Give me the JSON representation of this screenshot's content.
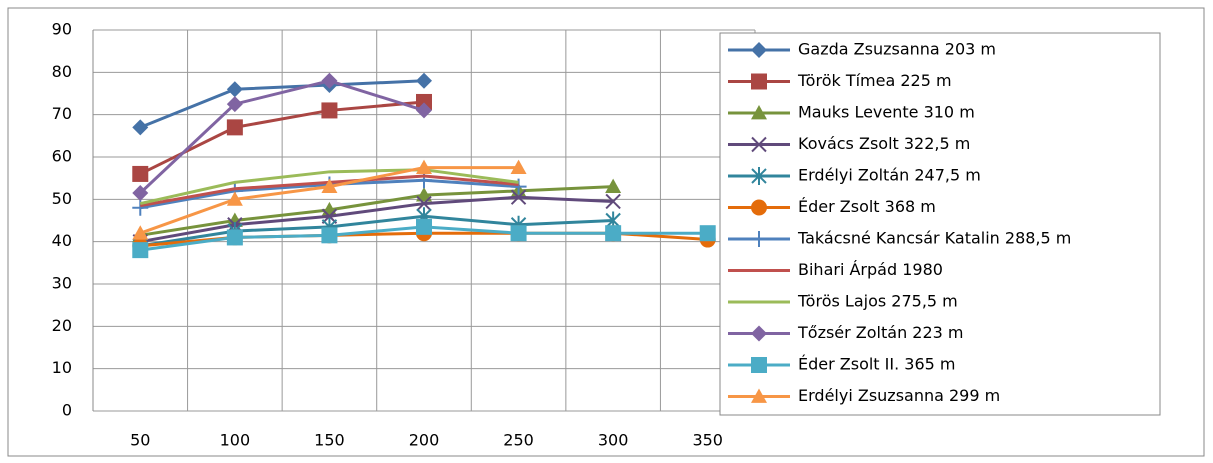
{
  "chart_data": {
    "type": "line",
    "categories": [
      "50",
      "100",
      "150",
      "200",
      "250",
      "300",
      "350"
    ],
    "ylim": [
      0,
      90
    ],
    "yticks": [
      0,
      10,
      20,
      30,
      40,
      50,
      60,
      70,
      80,
      90
    ],
    "grid": true,
    "legend": "right",
    "series": [
      {
        "name": "Gazda Zsuzsanna 203 m",
        "color": "#4572a7",
        "marker": "diamond",
        "values": [
          67,
          76,
          77,
          78,
          null,
          null,
          null
        ]
      },
      {
        "name": "Török Tímea 225 m",
        "color": "#aa4643",
        "marker": "square",
        "values": [
          56,
          67,
          71,
          73,
          null,
          null,
          null
        ]
      },
      {
        "name": "Mauks Levente 310 m",
        "color": "#77933c",
        "marker": "triangle",
        "values": [
          41.5,
          45,
          47.5,
          51,
          52,
          53,
          null
        ]
      },
      {
        "name": "Kovács Zsolt 322,5 m",
        "color": "#604a7b",
        "marker": "x",
        "values": [
          40,
          44,
          46,
          49,
          50.5,
          49.5,
          null
        ]
      },
      {
        "name": "Erdélyi Zoltán 247,5 m",
        "color": "#31859c",
        "marker": "star",
        "values": [
          39,
          42.5,
          43.5,
          46,
          44,
          45,
          null
        ]
      },
      {
        "name": "Éder Zsolt 368 m",
        "color": "#e46c0a",
        "marker": "circle",
        "values": [
          39,
          41,
          41.5,
          42,
          42,
          42,
          40.5
        ]
      },
      {
        "name": "Takácsné Kancsár Katalin 288,5 m",
        "color": "#4f81bd",
        "marker": "plus",
        "values": [
          48,
          52,
          53.5,
          54.5,
          53,
          null,
          null
        ]
      },
      {
        "name": "Bihari Árpád 1980",
        "color": "#c0504d",
        "marker": "none",
        "values": [
          48.5,
          52.5,
          54,
          55.5,
          53.5,
          null,
          null
        ]
      },
      {
        "name": "Törös Lajos 275,5 m",
        "color": "#9bbb59",
        "marker": "none",
        "values": [
          49,
          54,
          56.5,
          57,
          54,
          null,
          null
        ]
      },
      {
        "name": "Tőzsér Zoltán 223 m",
        "color": "#8064a2",
        "marker": "diamond",
        "values": [
          51.5,
          72.5,
          78,
          71,
          null,
          null,
          null
        ]
      },
      {
        "name": "Éder Zsolt II. 365 m",
        "color": "#4bacc6",
        "marker": "square",
        "values": [
          38,
          41,
          41.5,
          43.5,
          42,
          42,
          42
        ]
      },
      {
        "name": "Erdélyi Zsuzsanna 299 m",
        "color": "#f79646",
        "marker": "triangle",
        "values": [
          42,
          50,
          53,
          57.5,
          57.5,
          null,
          null
        ]
      }
    ]
  }
}
